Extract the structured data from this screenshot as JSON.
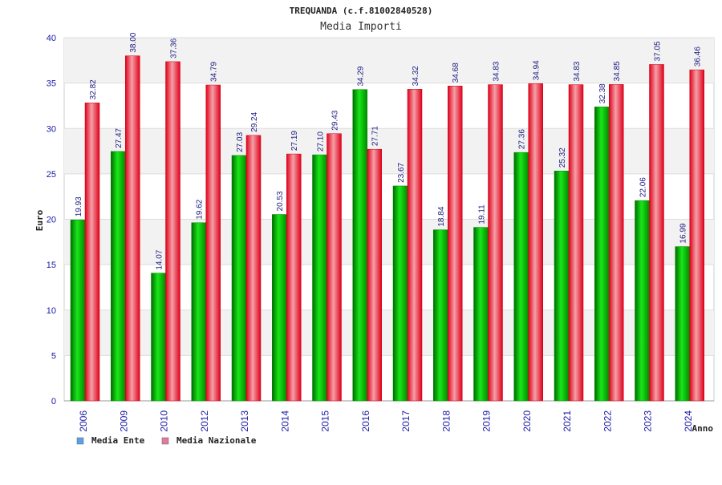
{
  "chart_data": {
    "type": "bar",
    "title": "TREQUANDA (c.f.81002840528)",
    "subtitle": "Media Importi",
    "xlabel": "Anno",
    "ylabel": "Euro",
    "ylim": [
      0,
      40
    ],
    "yticks": [
      0,
      5,
      10,
      15,
      20,
      25,
      30,
      35,
      40
    ],
    "categories": [
      "2006",
      "2009",
      "2010",
      "2012",
      "2013",
      "2014",
      "2015",
      "2016",
      "2017",
      "2018",
      "2019",
      "2020",
      "2021",
      "2022",
      "2023",
      "2024"
    ],
    "series": [
      {
        "name": "Media Ente",
        "color": "#00c000",
        "legend_color": "#5aa0e6",
        "values": [
          19.93,
          27.47,
          14.07,
          19.62,
          27.03,
          20.53,
          27.1,
          34.29,
          23.67,
          18.84,
          19.11,
          27.36,
          25.32,
          32.38,
          22.06,
          16.99
        ],
        "labels": [
          "19.93",
          "27.47",
          "14.07",
          "19.62",
          "27.03",
          "20.53",
          "27.10",
          "34.29",
          "23.67",
          "18.84",
          "19.11",
          "27.36",
          "25.32",
          "32.38",
          "22.06",
          "16.99"
        ]
      },
      {
        "name": "Media Nazionale",
        "color": "#e8202a",
        "legend_color": "#e07aa0",
        "values": [
          32.82,
          38.0,
          37.36,
          34.79,
          29.24,
          27.19,
          29.43,
          27.71,
          34.32,
          34.68,
          34.83,
          34.94,
          34.83,
          34.85,
          37.05,
          36.46
        ],
        "labels": [
          "32.82",
          "38.00",
          "37.36",
          "34.79",
          "29.24",
          "27.19",
          "29.43",
          "27.71",
          "34.32",
          "34.68",
          "34.83",
          "34.94",
          "34.83",
          "34.85",
          "37.05",
          "36.46"
        ]
      }
    ],
    "grid": true,
    "legend_position": "bottom-left"
  }
}
